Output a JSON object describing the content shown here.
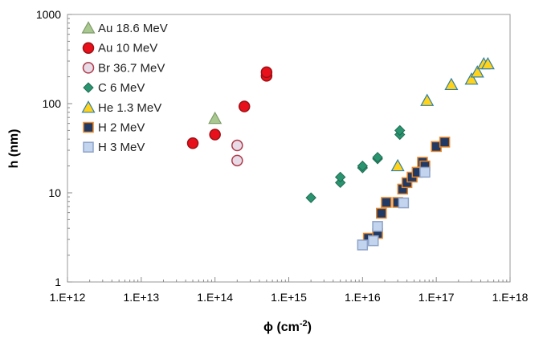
{
  "chart_data": {
    "type": "scatter",
    "xlabel": "ϕ (cm",
    "xlabel_sup": "-2",
    "xlabel_end": ")",
    "ylabel": "h (nm)",
    "xscale": "log",
    "yscale": "log",
    "xlim": [
      1000000000000.0,
      1e+18
    ],
    "ylim": [
      1,
      1000
    ],
    "x_tick_labels": [
      "1.E+12",
      "1.E+13",
      "1.E+14",
      "1.E+15",
      "1.E+16",
      "1.E+17",
      "1.E+18"
    ],
    "y_tick_labels": [
      "1",
      "10",
      "100",
      "1000"
    ],
    "grid": false,
    "legend_position": "top-left",
    "series": [
      {
        "name": "Au 18.6 MeV",
        "marker": "triangle",
        "fill": "#a9c88f",
        "stroke": "#7f9c6a",
        "points": [
          [
            100000000000000.0,
            68
          ]
        ]
      },
      {
        "name": "Au 10 MeV",
        "marker": "circle",
        "fill": "#e8101a",
        "stroke": "#9c1015",
        "points": [
          [
            50000000000000.0,
            36
          ],
          [
            100000000000000.0,
            45
          ],
          [
            250000000000000.0,
            93
          ],
          [
            500000000000000.0,
            205
          ],
          [
            500000000000000.0,
            225
          ]
        ]
      },
      {
        "name": "Br 36.7 MeV",
        "marker": "circle",
        "fill": "#e6dbe6",
        "stroke": "#b03a4a",
        "points": [
          [
            200000000000000.0,
            34
          ],
          [
            200000000000000.0,
            23
          ]
        ]
      },
      {
        "name": "C 6 MeV",
        "marker": "diamond",
        "fill": "#2a9470",
        "stroke": "#1f6b52",
        "points": [
          [
            2000000000000000.0,
            8.8
          ],
          [
            5000000000000000.0,
            13
          ],
          [
            5000000000000000.0,
            15
          ],
          [
            1e+16,
            19
          ],
          [
            1e+16,
            20
          ],
          [
            1.6e+16,
            24
          ],
          [
            1.6e+16,
            25
          ],
          [
            3.2e+16,
            45
          ],
          [
            3.2e+16,
            50
          ]
        ]
      },
      {
        "name": "He 1.3 MeV",
        "marker": "triangle",
        "fill": "#ffd21c",
        "stroke": "#2f7fa6",
        "points": [
          [
            3e+16,
            20
          ],
          [
            7.5e+16,
            108
          ],
          [
            1.6e+17,
            163
          ],
          [
            3e+17,
            187
          ],
          [
            3.6e+17,
            225
          ],
          [
            4.4e+17,
            278
          ],
          [
            5e+17,
            278
          ]
        ]
      },
      {
        "name": "H 2 MeV",
        "marker": "square",
        "fill": "#223a63",
        "stroke": "#e8872a",
        "points": [
          [
            1.2e+16,
            3.1
          ],
          [
            1.6e+16,
            3.5
          ],
          [
            1.8e+16,
            5.9
          ],
          [
            2.1e+16,
            7.8
          ],
          [
            3e+16,
            7.8
          ],
          [
            3.5e+16,
            11
          ],
          [
            4e+16,
            13
          ],
          [
            4.7e+16,
            15
          ],
          [
            5.5e+16,
            17
          ],
          [
            6.5e+16,
            22
          ],
          [
            7e+16,
            20
          ],
          [
            1e+17,
            33
          ],
          [
            1.3e+17,
            37
          ]
        ]
      },
      {
        "name": "H 3 MeV",
        "marker": "square",
        "fill": "#c2d4ee",
        "stroke": "#8ea3c9",
        "points": [
          [
            1e+16,
            2.6
          ],
          [
            1.4e+16,
            2.9
          ],
          [
            1.6e+16,
            4.2
          ],
          [
            3.6e+16,
            7.7
          ],
          [
            7e+16,
            17
          ]
        ]
      }
    ]
  }
}
